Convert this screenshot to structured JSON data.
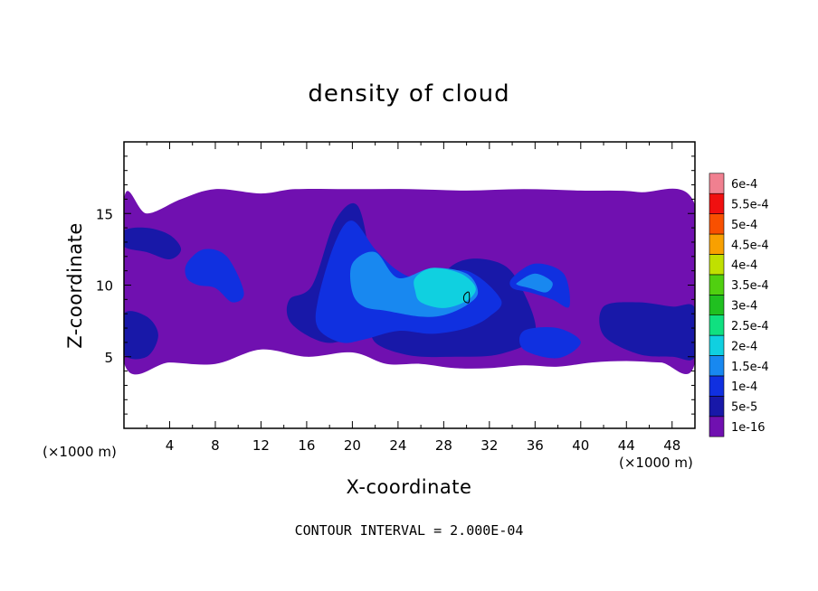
{
  "chart_data": {
    "type": "heatmap",
    "title": "density of cloud",
    "xlabel": "X-coordinate",
    "ylabel": "Z-coordinate",
    "x_units": "(×1000 m)",
    "y_units": "(×1000 m)",
    "xlim": [
      0,
      50
    ],
    "ylim": [
      0,
      20
    ],
    "x_ticks": [
      4,
      8,
      12,
      16,
      20,
      24,
      28,
      32,
      36,
      40,
      44,
      48
    ],
    "x_tick_labels": [
      "4",
      "8",
      "12",
      "16",
      "20",
      "24",
      "28",
      "32",
      "36",
      "40",
      "44",
      "48"
    ],
    "y_ticks": [
      5,
      10,
      15
    ],
    "y_tick_labels": [
      "5",
      "10",
      "15"
    ],
    "colorbar": {
      "labels": [
        "1e-16",
        "5e-5",
        "1e-4",
        "1.5e-4",
        "2e-4",
        "2.5e-4",
        "3e-4",
        "3.5e-4",
        "4e-4",
        "4.5e-4",
        "5e-4",
        "5.5e-4",
        "6e-4"
      ],
      "colors": [
        "#7010b0",
        "#1818a8",
        "#1030e0",
        "#1888f0",
        "#10d0e0",
        "#10e080",
        "#20c020",
        "#50d010",
        "#c0e000",
        "#f8a000",
        "#f85000",
        "#f01010",
        "#f08090"
      ]
    },
    "fields": [
      {
        "level": "1e-16",
        "regions": [
          {
            "x": [
              0,
              2,
              5,
              8,
              12,
              15,
              20,
              25,
              30,
              35,
              40,
              45,
              50,
              50,
              47,
              44,
              41,
              38,
              35,
              32,
              29,
              26,
              23,
              20,
              16,
              12,
              8,
              4,
              0
            ],
            "z": [
              16.0,
              15.0,
              16.0,
              16.7,
              16.4,
              16.7,
              16.7,
              16.7,
              16.6,
              16.7,
              16.6,
              16.5,
              15.6,
              4.6,
              4.6,
              4.7,
              4.6,
              4.3,
              4.4,
              4.2,
              4.2,
              4.5,
              4.5,
              5.3,
              5.0,
              5.5,
              4.5,
              4.6,
              4.6
            ]
          }
        ]
      },
      {
        "level": "5e-5",
        "regions": [
          {
            "x": [
              0,
              2,
              4,
              5,
              4,
              2,
              0
            ],
            "z": [
              13.8,
              14.0,
              13.5,
              12.5,
              11.8,
              12.3,
              12.7
            ]
          },
          {
            "x": [
              14.5,
              16.5,
              18.5,
              20.5,
              21.5,
              20.5,
              18.5,
              16.5,
              14.5
            ],
            "z": [
              9.0,
              10.0,
              14.5,
              15.5,
              11.0,
              7.0,
              6.0,
              6.3,
              7.5
            ]
          },
          {
            "x": [
              22,
              25,
              29,
              33,
              35,
              36,
              33,
              29,
              25,
              22
            ],
            "z": [
              7.5,
              8.0,
              11.5,
              11.5,
              9.5,
              6.5,
              5.2,
              5.0,
              5.1,
              6.0
            ]
          },
          {
            "x": [
              0,
              2,
              3,
              2,
              0
            ],
            "z": [
              8.0,
              7.8,
              6.5,
              5.0,
              5.2
            ]
          },
          {
            "x": [
              42,
              45,
              48,
              50,
              50,
              48,
              45,
              42
            ],
            "z": [
              8.5,
              8.8,
              8.5,
              8.4,
              5.0,
              5.0,
              5.2,
              6.5
            ]
          }
        ]
      },
      {
        "level": "1e-4",
        "regions": [
          {
            "x": [
              5.5,
              7,
              9,
              10.5,
              9.5,
              8,
              6.5,
              5.5
            ],
            "z": [
              11.5,
              12.5,
              12.0,
              9.5,
              8.8,
              9.8,
              10.0,
              10.5
            ]
          },
          {
            "x": [
              17,
              18.5,
              20,
              22,
              24,
              26,
              30,
              33,
              32,
              30,
              27,
              24,
              21,
              19,
              17
            ],
            "z": [
              9.0,
              13.0,
              14.5,
              12.5,
              11.0,
              10.5,
              11.0,
              9.0,
              7.8,
              7.0,
              6.6,
              6.8,
              6.2,
              6.0,
              7.0
            ]
          },
          {
            "x": [
              34,
              36,
              38.5,
              39,
              37.5,
              35.5,
              34
            ],
            "z": [
              10.5,
              11.5,
              10.8,
              8.5,
              9.0,
              9.5,
              9.8
            ]
          },
          {
            "x": [
              35,
              38,
              40,
              38,
              35
            ],
            "z": [
              6.8,
              7.0,
              6.0,
              4.9,
              5.5
            ]
          }
        ]
      },
      {
        "level": "1.5e-4",
        "regions": [
          {
            "x": [
              20,
              22,
              24,
              27,
              30,
              31,
              30,
              28,
              26,
              23,
              21,
              20
            ],
            "z": [
              11.5,
              12.3,
              10.5,
              11.2,
              10.8,
              9.5,
              8.6,
              7.9,
              7.8,
              8.2,
              8.5,
              9.5
            ]
          },
          {
            "x": [
              34.5,
              36,
              37.5,
              37,
              35.5,
              34.5
            ],
            "z": [
              10.2,
              10.8,
              10.2,
              9.5,
              9.8,
              10.0
            ]
          }
        ]
      },
      {
        "level": "2e-4",
        "regions": [
          {
            "x": [
              25.5,
              27,
              29.5,
              30.8,
              30,
              28,
              26,
              25.5
            ],
            "z": [
              10.5,
              11.2,
              10.8,
              9.8,
              8.9,
              8.4,
              8.8,
              9.6
            ]
          }
        ]
      }
    ],
    "contour_line": {
      "level": "2e-4",
      "x": [
        29.8,
        30.2,
        30.2,
        29.8
      ],
      "z": [
        9.3,
        9.5,
        8.8,
        8.9
      ]
    },
    "footnote": "CONTOUR INTERVAL = 2.000E-04"
  }
}
